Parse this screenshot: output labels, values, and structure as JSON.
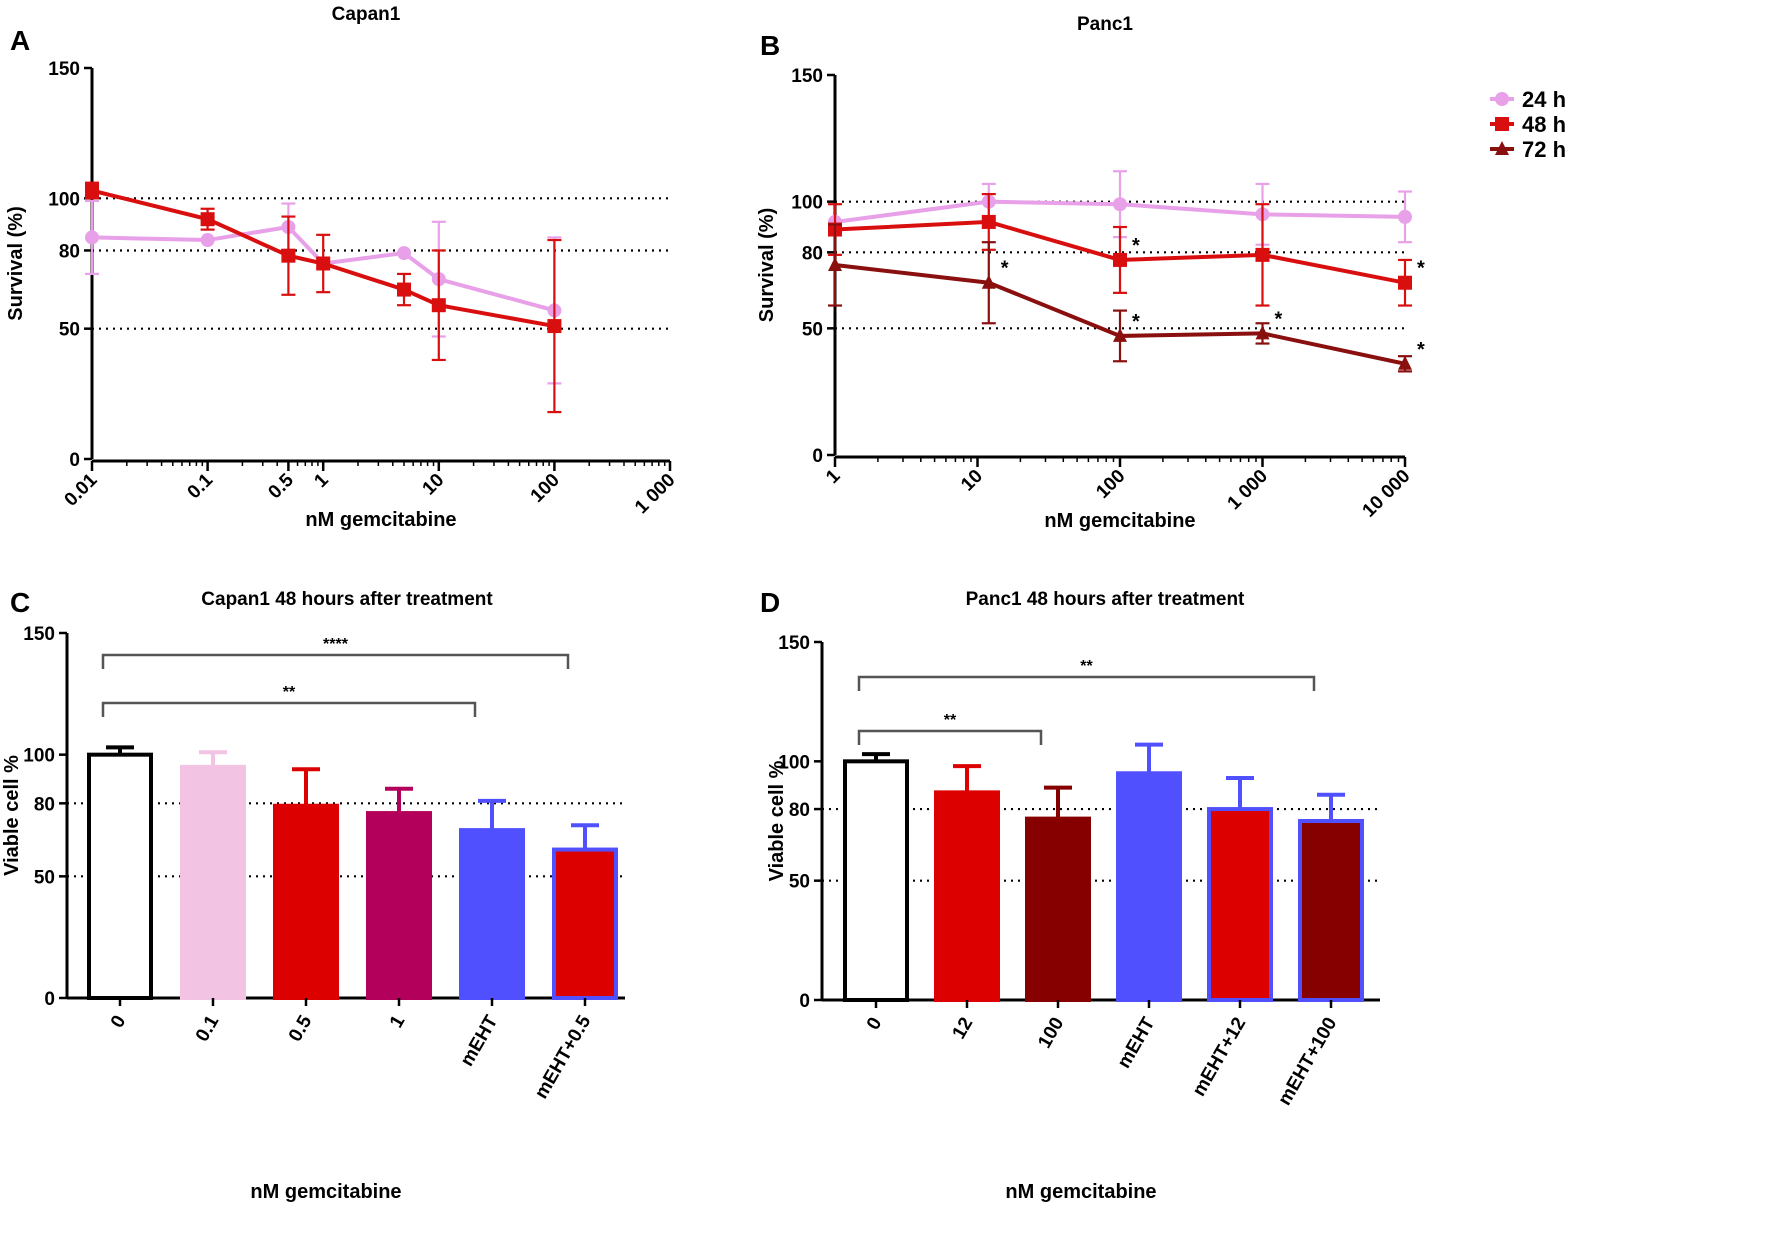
{
  "chart_data": [
    {
      "id": "A",
      "panel_letter": "A",
      "type": "line",
      "title": "Capan1",
      "xlabel": "nM gemcitabine",
      "ylabel": "Survival (%)",
      "x_scale": "log",
      "xlim": [
        0.01,
        1000
      ],
      "ylim": [
        0,
        150
      ],
      "y_ticks": [
        0,
        50,
        80,
        100,
        150
      ],
      "x_ticks": [
        0.01,
        0.1,
        0.5,
        1,
        10,
        100,
        1000
      ],
      "x_tick_labels": [
        "0.01",
        "0.1",
        "0.5",
        "1",
        "10",
        "100",
        "1 000"
      ],
      "reference_lines": [
        50,
        80,
        100
      ],
      "series": [
        {
          "name": "24 h",
          "color": "#e8a0e8",
          "marker": "circle",
          "x": [
            0.01,
            0.1,
            0.5,
            1,
            5,
            10,
            100
          ],
          "y": [
            85,
            84,
            89,
            75,
            79,
            69,
            57
          ],
          "err": [
            14,
            0,
            9,
            0,
            0,
            22,
            28
          ]
        },
        {
          "name": "48 h",
          "color": "#d90f0f",
          "marker": "square",
          "x": [
            0.01,
            0.1,
            0.5,
            1,
            5,
            10,
            100
          ],
          "y": [
            103,
            92,
            78,
            75,
            65,
            59,
            51
          ],
          "err": [
            3,
            4,
            15,
            11,
            6,
            21,
            33
          ]
        }
      ]
    },
    {
      "id": "B",
      "panel_letter": "B",
      "type": "line",
      "title": "Panc1",
      "xlabel": "nM gemcitabine",
      "ylabel": "Survival (%)",
      "x_scale": "log",
      "xlim": [
        1,
        10000
      ],
      "ylim": [
        0,
        150
      ],
      "y_ticks": [
        0,
        50,
        80,
        100,
        150
      ],
      "x_ticks": [
        1,
        10,
        100,
        1000,
        10000
      ],
      "x_tick_labels": [
        "1",
        "10",
        "100",
        "1 000",
        "10 000"
      ],
      "reference_lines": [
        50,
        80,
        100
      ],
      "legend": {
        "position": "top-right",
        "entries": [
          "24 h",
          "48 h",
          "72 h"
        ]
      },
      "series": [
        {
          "name": "24 h",
          "color": "#e8a0e8",
          "marker": "circle",
          "x": [
            1,
            12,
            100,
            1000,
            10000
          ],
          "y": [
            92,
            100,
            99,
            95,
            94
          ],
          "err": [
            0,
            7,
            13,
            12,
            10
          ],
          "sig": [
            null,
            null,
            null,
            null,
            null
          ]
        },
        {
          "name": "48 h",
          "color": "#d90f0f",
          "marker": "square",
          "x": [
            1,
            12,
            100,
            1000,
            10000
          ],
          "y": [
            89,
            92,
            77,
            79,
            68
          ],
          "err": [
            10,
            11,
            13,
            20,
            9
          ],
          "sig": [
            null,
            null,
            "*",
            null,
            "*"
          ]
        },
        {
          "name": "72 h",
          "color": "#8a0f0f",
          "marker": "triangle",
          "x": [
            1,
            12,
            100,
            1000,
            10000
          ],
          "y": [
            75,
            68,
            47,
            48,
            36
          ],
          "err": [
            16,
            16,
            10,
            4,
            3
          ],
          "sig": [
            null,
            "*",
            "*",
            "*",
            "*"
          ]
        }
      ]
    },
    {
      "id": "C",
      "panel_letter": "C",
      "type": "bar",
      "title": "Capan1 48 hours after treatment",
      "xlabel": "nM gemcitabine",
      "ylabel": "Viable cell %",
      "ylim": [
        0,
        150
      ],
      "y_ticks": [
        0,
        50,
        80,
        100,
        150
      ],
      "reference_lines": [
        50,
        80
      ],
      "categories": [
        "0",
        "0.1",
        "0.5",
        "1",
        "mEHT",
        "mEHT+0.5"
      ],
      "values": [
        100,
        95,
        79,
        76,
        69,
        61
      ],
      "errors": [
        3,
        6,
        15,
        10,
        12,
        10
      ],
      "fills": [
        "#ffffff",
        "#f2c3e3",
        "#dc0000",
        "#b3005a",
        "#5050ff",
        "#dc0000"
      ],
      "strokes": [
        "#000000",
        "#f2c3e3",
        "#dc0000",
        "#b3005a",
        "#5050ff",
        "#5050ff"
      ],
      "significance": [
        {
          "from": 0,
          "to": 5,
          "label": "****"
        },
        {
          "from": 0,
          "to": 4,
          "label": "**"
        }
      ]
    },
    {
      "id": "D",
      "panel_letter": "D",
      "type": "bar",
      "title": "Panc1 48 hours after treatment",
      "xlabel": "nM gemcitabine",
      "ylabel": "Viable cell %",
      "ylim": [
        0,
        150
      ],
      "y_ticks": [
        0,
        50,
        80,
        100,
        150
      ],
      "reference_lines": [
        50,
        80
      ],
      "categories": [
        "0",
        "12",
        "100",
        "mEHT",
        "mEHT+12",
        "mEHT+100"
      ],
      "values": [
        100,
        87,
        76,
        95,
        80,
        75
      ],
      "errors": [
        3,
        11,
        13,
        12,
        13,
        11
      ],
      "fills": [
        "#ffffff",
        "#dc0000",
        "#870000",
        "#5050ff",
        "#dc0000",
        "#870000"
      ],
      "strokes": [
        "#000000",
        "#dc0000",
        "#870000",
        "#5050ff",
        "#5050ff",
        "#5050ff"
      ],
      "significance": [
        {
          "from": 0,
          "to": 5,
          "label": "**"
        },
        {
          "from": 0,
          "to": 2,
          "label": "**"
        }
      ]
    }
  ]
}
